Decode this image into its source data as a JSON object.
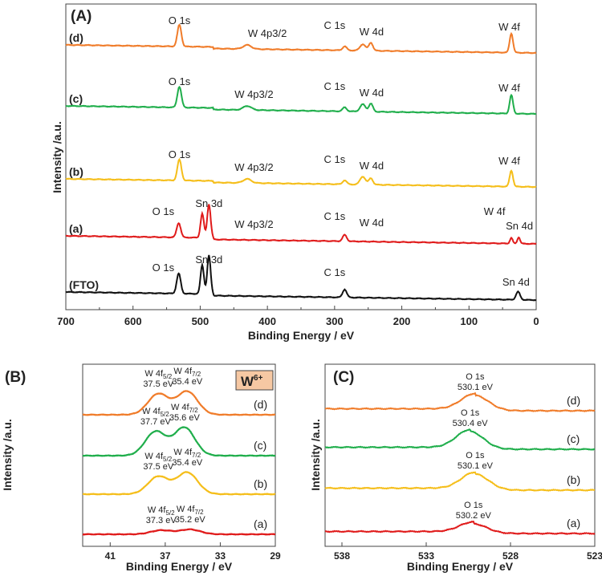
{
  "chart_data": [
    {
      "panel": "(A)",
      "type": "line",
      "xlabel": "Binding Energy / eV",
      "ylabel": "Intensity /a.u.",
      "xlim": [
        700,
        0
      ],
      "xticks": [
        "700",
        "600",
        "500",
        "400",
        "300",
        "200",
        "100",
        "0"
      ],
      "series": [
        {
          "name": "(FTO)",
          "color": "#111111",
          "peaks": [
            {
              "at": 532,
              "h": 25,
              "w": 3
            },
            {
              "at": 497,
              "h": 36,
              "w": 2.5
            },
            {
              "at": 487,
              "h": 48,
              "w": 2.5
            },
            {
              "at": 285,
              "h": 10,
              "w": 3
            },
            {
              "at": 27,
              "h": 10,
              "w": 3
            }
          ],
          "annotations": [
            {
              "text": "O 1s",
              "at": 555
            },
            {
              "text": "Sn 3d",
              "at": 487
            },
            {
              "text": "C 1s",
              "at": 300
            },
            {
              "text": "Sn 4d",
              "at": 30
            }
          ]
        },
        {
          "name": "(a)",
          "color": "#e01b1b",
          "peaks": [
            {
              "at": 532,
              "h": 18,
              "w": 3
            },
            {
              "at": 497,
              "h": 30,
              "w": 2.5
            },
            {
              "at": 487,
              "h": 42,
              "w": 2.5
            },
            {
              "at": 285,
              "h": 8,
              "w": 3
            },
            {
              "at": 37,
              "h": 7,
              "w": 2
            },
            {
              "at": 26,
              "h": 8,
              "w": 2
            }
          ],
          "annotations": [
            {
              "text": "O 1s",
              "at": 555
            },
            {
              "text": "Sn 3d",
              "at": 487
            },
            {
              "text": "W 4p3/2",
              "at": 420
            },
            {
              "text": "C 1s",
              "at": 300
            },
            {
              "text": "W 4d",
              "at": 245
            },
            {
              "text": "W 4f",
              "at": 62
            },
            {
              "text": "Sn 4d",
              "at": 25
            }
          ]
        },
        {
          "name": "(b)",
          "color": "#f5be1a",
          "peaks": [
            {
              "at": 531,
              "h": 26,
              "w": 3
            },
            {
              "at": 430,
              "h": 5,
              "w": 6
            },
            {
              "at": 285,
              "h": 5,
              "w": 3
            },
            {
              "at": 258,
              "h": 10,
              "w": 4
            },
            {
              "at": 246,
              "h": 8,
              "w": 3
            },
            {
              "at": 37,
              "h": 20,
              "w": 2.5
            }
          ],
          "annotations": [
            {
              "text": "O 1s",
              "at": 531
            },
            {
              "text": "W 4p3/2",
              "at": 420
            },
            {
              "text": "C 1s",
              "at": 300
            },
            {
              "text": "W 4d",
              "at": 245
            },
            {
              "text": "W 4f",
              "at": 40
            }
          ]
        },
        {
          "name": "(c)",
          "color": "#1fae4b",
          "peaks": [
            {
              "at": 531,
              "h": 26,
              "w": 3
            },
            {
              "at": 430,
              "h": 5,
              "w": 6
            },
            {
              "at": 285,
              "h": 5,
              "w": 3
            },
            {
              "at": 258,
              "h": 9,
              "w": 4
            },
            {
              "at": 246,
              "h": 10,
              "w": 3
            },
            {
              "at": 37,
              "h": 23,
              "w": 2.5
            }
          ],
          "annotations": [
            {
              "text": "O 1s",
              "at": 531
            },
            {
              "text": "W 4p3/2",
              "at": 420
            },
            {
              "text": "C 1s",
              "at": 300
            },
            {
              "text": "W 4d",
              "at": 245
            },
            {
              "text": "W 4f",
              "at": 40
            }
          ]
        },
        {
          "name": "(d)",
          "color": "#f07c2a",
          "peaks": [
            {
              "at": 531,
              "h": 27,
              "w": 3
            },
            {
              "at": 430,
              "h": 5,
              "w": 6
            },
            {
              "at": 285,
              "h": 5,
              "w": 3
            },
            {
              "at": 258,
              "h": 8,
              "w": 4
            },
            {
              "at": 246,
              "h": 10,
              "w": 3
            },
            {
              "at": 37,
              "h": 24,
              "w": 2.5
            }
          ],
          "annotations": [
            {
              "text": "O 1s",
              "at": 531
            },
            {
              "text": "W 4p3/2",
              "at": 400
            },
            {
              "text": "C 1s",
              "at": 300
            },
            {
              "text": "W 4d",
              "at": 245
            },
            {
              "text": "W 4f",
              "at": 40
            }
          ]
        }
      ]
    },
    {
      "panel": "(B)",
      "type": "line",
      "xlabel": "Binding Energy / eV",
      "ylabel": "Intensity /a.u.",
      "xlim": [
        43,
        29
      ],
      "xticks": [
        "41",
        "37",
        "33",
        "29"
      ],
      "badge": "W",
      "badge_sup": "6+",
      "series": [
        {
          "name": "(a)",
          "color": "#e01b1b",
          "p1": 37.3,
          "p2": 35.2,
          "h1": 5,
          "h2": 6,
          "label1": "W 4f",
          "sub1": "5/2",
          "val1": "37.3 eV",
          "label2": "W 4f",
          "sub2": "7/2",
          "val2": "35.2 eV"
        },
        {
          "name": "(b)",
          "color": "#f5be1a",
          "p1": 37.5,
          "p2": 35.4,
          "h1": 22,
          "h2": 27,
          "label1": "W 4f",
          "sub1": "5/2",
          "val1": "37.5 eV",
          "label2": "W 4f",
          "sub2": "7/2",
          "val2": "35.4 eV"
        },
        {
          "name": "(c)",
          "color": "#1fae4b",
          "p1": 37.7,
          "p2": 35.6,
          "h1": 30,
          "h2": 35,
          "label1": "W 4f",
          "sub1": "5/2",
          "val1": "37.7 eV",
          "label2": "W 4f",
          "sub2": "7/2",
          "val2": "35.6 eV"
        },
        {
          "name": "(d)",
          "color": "#f07c2a",
          "p1": 37.5,
          "p2": 35.4,
          "h1": 26,
          "h2": 29,
          "label1": "W 4f",
          "sub1": "5/2",
          "val1": "37.5 eV",
          "label2": "W 4f",
          "sub2": "7/2",
          "val2": "35.4 eV"
        }
      ]
    },
    {
      "panel": "(C)",
      "type": "line",
      "xlabel": "Binding Energy / eV",
      "ylabel": "Intensity /a.u.",
      "xlim": [
        539,
        523
      ],
      "xticks": [
        "538",
        "533",
        "528",
        "523"
      ],
      "series": [
        {
          "name": "(a)",
          "color": "#e01b1b",
          "peak": 530.2,
          "h": 12,
          "label": "O 1s",
          "val": "530.2 eV"
        },
        {
          "name": "(b)",
          "color": "#f5be1a",
          "peak": 530.1,
          "h": 20,
          "label": "O 1s",
          "val": "530.1 eV"
        },
        {
          "name": "(c)",
          "color": "#1fae4b",
          "peak": 530.4,
          "h": 22,
          "label": "O 1s",
          "val": "530.4 eV"
        },
        {
          "name": "(d)",
          "color": "#f07c2a",
          "peak": 530.1,
          "h": 19,
          "label": "O 1s",
          "val": "530.1 eV"
        }
      ]
    }
  ]
}
